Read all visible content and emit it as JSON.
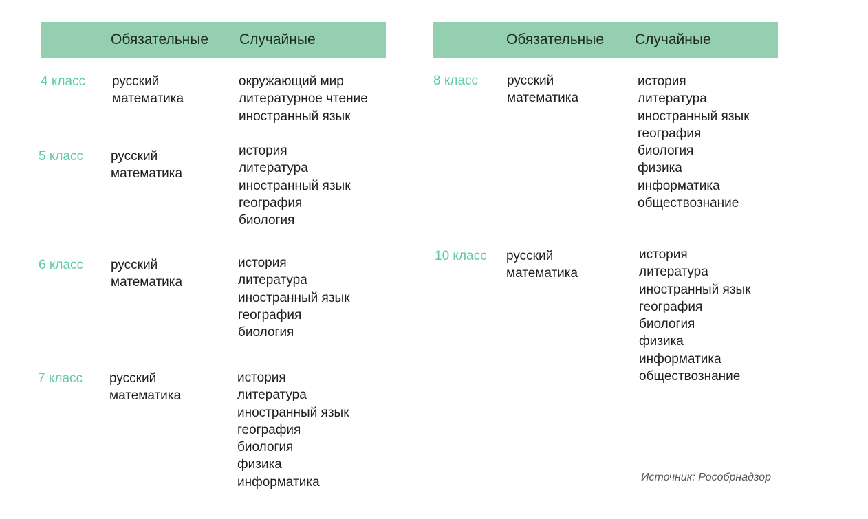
{
  "header": {
    "required": "Обязательные",
    "random": "Случайные"
  },
  "colors": {
    "header_bg": "#94cfb0",
    "grade": "#5ccbae"
  },
  "grades": [
    {
      "label": "4 класс",
      "required": [
        "русский",
        "математика"
      ],
      "random": [
        "окружающий мир",
        "литературное чтение",
        "иностранный язык"
      ]
    },
    {
      "label": "5 класс",
      "required": [
        "русский",
        "математика"
      ],
      "random": [
        "история",
        "литература",
        "иностранный язык",
        "география",
        "биология"
      ]
    },
    {
      "label": "6 класс",
      "required": [
        "русский",
        "математика"
      ],
      "random": [
        "история",
        "литература",
        "иностранный язык",
        "география",
        "биология"
      ]
    },
    {
      "label": "7 класс",
      "required": [
        "русский",
        "математика"
      ],
      "random": [
        "история",
        "литература",
        "иностранный язык",
        "география",
        "биология",
        "физика",
        "информатика"
      ]
    },
    {
      "label": "8 класс",
      "required": [
        "русский",
        "математика"
      ],
      "random": [
        "история",
        "литература",
        "иностранный язык",
        "география",
        "биология",
        "физика",
        "информатика",
        "обществознание"
      ]
    },
    {
      "label": "10 класс",
      "required": [
        "русский",
        "математика"
      ],
      "random": [
        "история",
        "литература",
        "иностранный язык",
        "география",
        "биология",
        "физика",
        "информатика",
        "обществознание"
      ]
    }
  ],
  "source": "Источник: Рособрнадзор"
}
